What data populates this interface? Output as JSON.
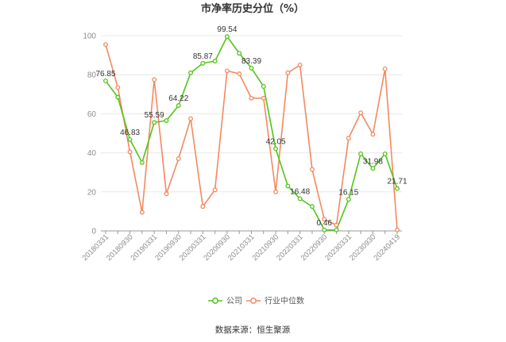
{
  "chart_data": {
    "type": "line",
    "title": "市净率历史分位（%）",
    "xlabel": "",
    "ylabel": "",
    "ylim": [
      0,
      100
    ],
    "yticks": [
      0,
      20,
      40,
      60,
      80,
      100
    ],
    "grid": true,
    "legend_position": "bottom",
    "tick_labels": [
      "20180331",
      "20180930",
      "20190331",
      "20190930",
      "20200331",
      "20200930",
      "20210331",
      "20210930",
      "20220331",
      "20220930",
      "20230331",
      "20230930",
      "20240419"
    ],
    "x": [
      "20180331",
      "20180630",
      "20180930",
      "20181231",
      "20190331",
      "20190630",
      "20190930",
      "20191231",
      "20200331",
      "20200630",
      "20200930",
      "20201231",
      "20210331",
      "20210630",
      "20210930",
      "20211231",
      "20220331",
      "20220630",
      "20220930",
      "20221231",
      "20230331",
      "20230630",
      "20230930",
      "20231231",
      "20240419"
    ],
    "series": [
      {
        "name": "公司",
        "color": "#52c41a",
        "values": [
          76.85,
          68.5,
          46.83,
          35.0,
          55.59,
          56.5,
          64.22,
          81.0,
          85.87,
          87.0,
          99.54,
          91.0,
          83.39,
          74.0,
          42.05,
          23.0,
          16.48,
          12.5,
          0.46,
          0.5,
          16.15,
          39.5,
          31.98,
          39.5,
          21.71
        ],
        "labels": {
          "0": "76.85",
          "2": "46.83",
          "4": "55.59",
          "6": "64.22",
          "8": "85.87",
          "10": "99.54",
          "12": "83.39",
          "14": "42.05",
          "16": "16.48",
          "18": "0.46",
          "20": "16.15",
          "22": "31.98",
          "24": "21.71"
        }
      },
      {
        "name": "行业中位数",
        "color": "#f4895f",
        "values": [
          95.5,
          73.5,
          40.5,
          9.5,
          77.5,
          19.0,
          37.0,
          57.5,
          12.5,
          21.0,
          82.0,
          80.5,
          68.0,
          68.0,
          20.0,
          81.0,
          85.0,
          31.5,
          6.0,
          3.0,
          47.5,
          60.5,
          49.5,
          83.0,
          0.5
        ]
      }
    ],
    "source_text": "数据来源：恒生聚源"
  }
}
